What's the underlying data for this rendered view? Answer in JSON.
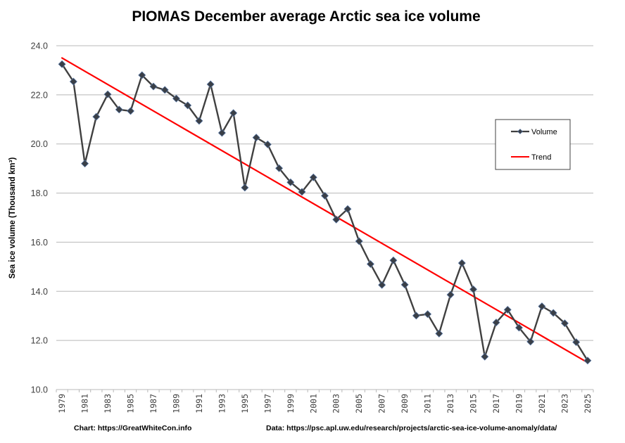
{
  "chart_data": {
    "type": "line",
    "title": "PIOMAS December average Arctic sea ice volume",
    "xlabel": "",
    "ylabel": "Sea ice volume (Thousand km³)",
    "ylim": [
      10.0,
      24.0
    ],
    "yticks": [
      "10.0",
      "12.0",
      "14.0",
      "16.0",
      "18.0",
      "20.0",
      "22.0",
      "24.0"
    ],
    "ytick_values": [
      10,
      12,
      14,
      16,
      18,
      20,
      22,
      24
    ],
    "grid": true,
    "legend_position": "right",
    "x": [
      1979,
      1980,
      1981,
      1982,
      1983,
      1984,
      1985,
      1986,
      1987,
      1988,
      1989,
      1990,
      1991,
      1992,
      1993,
      1994,
      1995,
      1996,
      1997,
      1998,
      1999,
      2000,
      2001,
      2002,
      2003,
      2004,
      2005,
      2006,
      2007,
      2008,
      2009,
      2010,
      2011,
      2012,
      2013,
      2014,
      2015,
      2016,
      2017,
      2018,
      2019,
      2020,
      2021,
      2022,
      2023,
      2024,
      2025
    ],
    "xtick_labels": [
      "1979",
      "1981",
      "1983",
      "1985",
      "1987",
      "1989",
      "1991",
      "1993",
      "1995",
      "1997",
      "1999",
      "2001",
      "2003",
      "2005",
      "2007",
      "2009",
      "2011",
      "2013",
      "2015",
      "2017",
      "2019",
      "2021",
      "2023",
      "2025"
    ],
    "series": [
      {
        "name": "Volume",
        "color": "#404040",
        "marker": "diamond",
        "values": [
          23.25,
          22.54,
          19.2,
          21.11,
          22.02,
          21.4,
          21.34,
          22.8,
          22.34,
          22.2,
          21.85,
          21.57,
          20.94,
          22.43,
          20.45,
          21.26,
          18.22,
          20.26,
          19.98,
          19.01,
          18.44,
          18.05,
          18.64,
          17.89,
          16.92,
          17.35,
          16.04,
          15.11,
          14.26,
          15.26,
          14.27,
          13.01,
          13.07,
          12.28,
          13.86,
          15.15,
          14.08,
          11.34,
          12.73,
          13.25,
          12.52,
          11.95,
          13.39,
          13.12,
          12.7,
          11.93,
          11.18
        ]
      },
      {
        "name": "Trend",
        "color": "#ff0000",
        "marker": "none",
        "start": {
          "x": 1979,
          "y": 23.5
        },
        "end": {
          "x": 2025,
          "y": 11.1
        }
      }
    ],
    "annotations": [
      "Chart: https://GreatWhiteCon.info",
      "Data: https://psc.apl.uw.edu/research/projects/arctic-sea-ice-volume-anomaly/data/"
    ]
  },
  "footer": {
    "chart_credit": "Chart: https://GreatWhiteCon.info",
    "data_credit": "Data: https://psc.apl.uw.edu/research/projects/arctic-sea-ice-volume-anomaly/data/"
  },
  "legend": {
    "volume_label": "Volume",
    "trend_label": "Trend"
  }
}
